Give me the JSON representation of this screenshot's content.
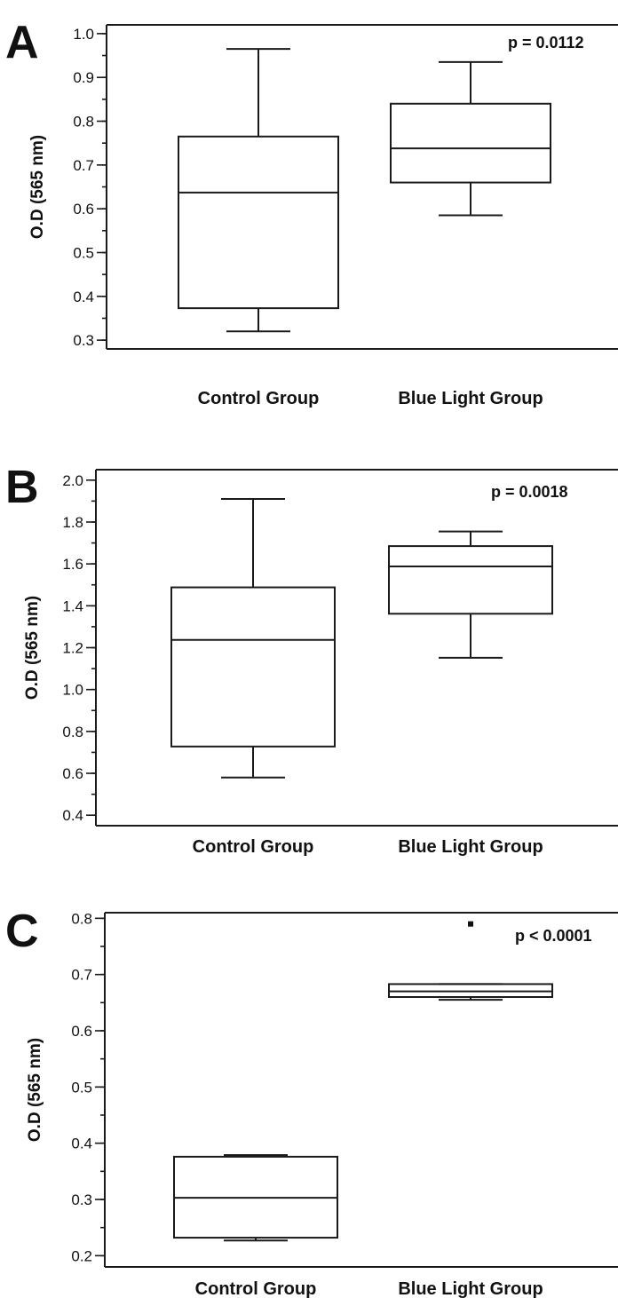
{
  "chart_data": [
    {
      "type": "box",
      "panel_label": "A",
      "ylabel": "O.D (565 nm)",
      "ylim": [
        0.28,
        1.02
      ],
      "yticks": [
        0.3,
        0.4,
        0.5,
        0.6,
        0.7,
        0.8,
        0.9,
        1.0
      ],
      "ytick_labels": [
        "0.3",
        "0.4",
        "0.5",
        "0.6",
        "0.7",
        "0.8",
        "0.9",
        "1.0"
      ],
      "ytick_minor_step": 0.05,
      "categories": [
        "Control Group",
        "Blue Light Group"
      ],
      "boxes": [
        {
          "whisker_low": 0.32,
          "q1": 0.373,
          "median": 0.637,
          "q3": 0.765,
          "whisker_high": 0.965
        },
        {
          "whisker_low": 0.585,
          "q1": 0.66,
          "median": 0.738,
          "q3": 0.84,
          "whisker_high": 0.935
        }
      ],
      "outliers": [],
      "annotation": "p = 0.0112"
    },
    {
      "type": "box",
      "panel_label": "B",
      "ylabel": "O.D (565 nm)",
      "ylim": [
        0.35,
        2.05
      ],
      "yticks": [
        0.4,
        0.6,
        0.8,
        1.0,
        1.2,
        1.4,
        1.6,
        1.8,
        2.0
      ],
      "ytick_labels": [
        "0.4",
        "0.6",
        "0.8",
        "1.0",
        "1.2",
        "1.4",
        "1.6",
        "1.8",
        "2.0"
      ],
      "ytick_minor_step": 0.1,
      "categories": [
        "Control Group",
        "Blue Light Group"
      ],
      "boxes": [
        {
          "whisker_low": 0.58,
          "q1": 0.728,
          "median": 1.237,
          "q3": 1.488,
          "whisker_high": 1.91
        },
        {
          "whisker_low": 1.152,
          "q1": 1.362,
          "median": 1.588,
          "q3": 1.685,
          "whisker_high": 1.755
        }
      ],
      "outliers": [],
      "annotation": "p = 0.0018"
    },
    {
      "type": "box",
      "panel_label": "C",
      "ylabel": "O.D (565 nm)",
      "ylim": [
        0.18,
        0.81
      ],
      "yticks": [
        0.2,
        0.3,
        0.4,
        0.5,
        0.6,
        0.7,
        0.8
      ],
      "ytick_labels": [
        "0.2",
        "0.3",
        "0.4",
        "0.5",
        "0.6",
        "0.7",
        "0.8"
      ],
      "ytick_minor_step": 0.05,
      "categories": [
        "Control Group",
        "Blue Light Group"
      ],
      "boxes": [
        {
          "whisker_low": 0.227,
          "q1": 0.232,
          "median": 0.303,
          "q3": 0.376,
          "whisker_high": 0.379
        },
        {
          "whisker_low": 0.655,
          "q1": 0.66,
          "median": 0.67,
          "q3": 0.683,
          "whisker_high": 0.683
        }
      ],
      "outliers": [
        {
          "category": "Blue Light Group",
          "value": 0.79
        }
      ],
      "annotation": "p < 0.0001"
    }
  ]
}
